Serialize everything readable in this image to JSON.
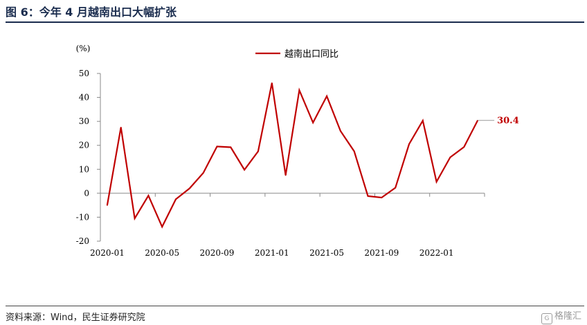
{
  "figure_title": "图 6：今年 4 月越南出口大幅扩张",
  "source_text": "资料来源：Wind，民生证券研究院",
  "watermark_text": "格隆汇",
  "colors": {
    "series": "#c00000",
    "axis": "#888888",
    "title": "#1a2c4e"
  },
  "chart_data": {
    "type": "line",
    "ylabel": "(%)",
    "ylim": [
      -20,
      50
    ],
    "yticks": [
      50,
      40,
      30,
      20,
      10,
      0,
      -10,
      -20
    ],
    "grid": false,
    "legend_position": "top",
    "x": [
      "2020-01",
      "2020-02",
      "2020-03",
      "2020-04",
      "2020-05",
      "2020-06",
      "2020-07",
      "2020-08",
      "2020-09",
      "2020-10",
      "2020-11",
      "2020-12",
      "2021-01",
      "2021-02",
      "2021-03",
      "2021-04",
      "2021-05",
      "2021-06",
      "2021-07",
      "2021-08",
      "2021-09",
      "2021-10",
      "2021-11",
      "2021-12",
      "2022-01",
      "2022-02",
      "2022-03",
      "2022-04"
    ],
    "xtick_labels": [
      "2020-01",
      "2020-05",
      "2020-09",
      "2021-01",
      "2021-05",
      "2021-09",
      "2022-01"
    ],
    "series": [
      {
        "name": "越南出口同比",
        "values": [
          -5,
          27.5,
          -10.5,
          -1,
          -14,
          -2.5,
          2,
          8.5,
          19.5,
          19.2,
          9.8,
          17.5,
          46,
          7.5,
          43,
          29.5,
          40.5,
          26,
          17.5,
          -1.2,
          -1.8,
          2.3,
          20.5,
          30.3,
          4.8,
          15,
          19.3,
          30.4
        ]
      }
    ],
    "annotations": [
      {
        "x": "2022-04",
        "label": "30.4"
      }
    ]
  }
}
